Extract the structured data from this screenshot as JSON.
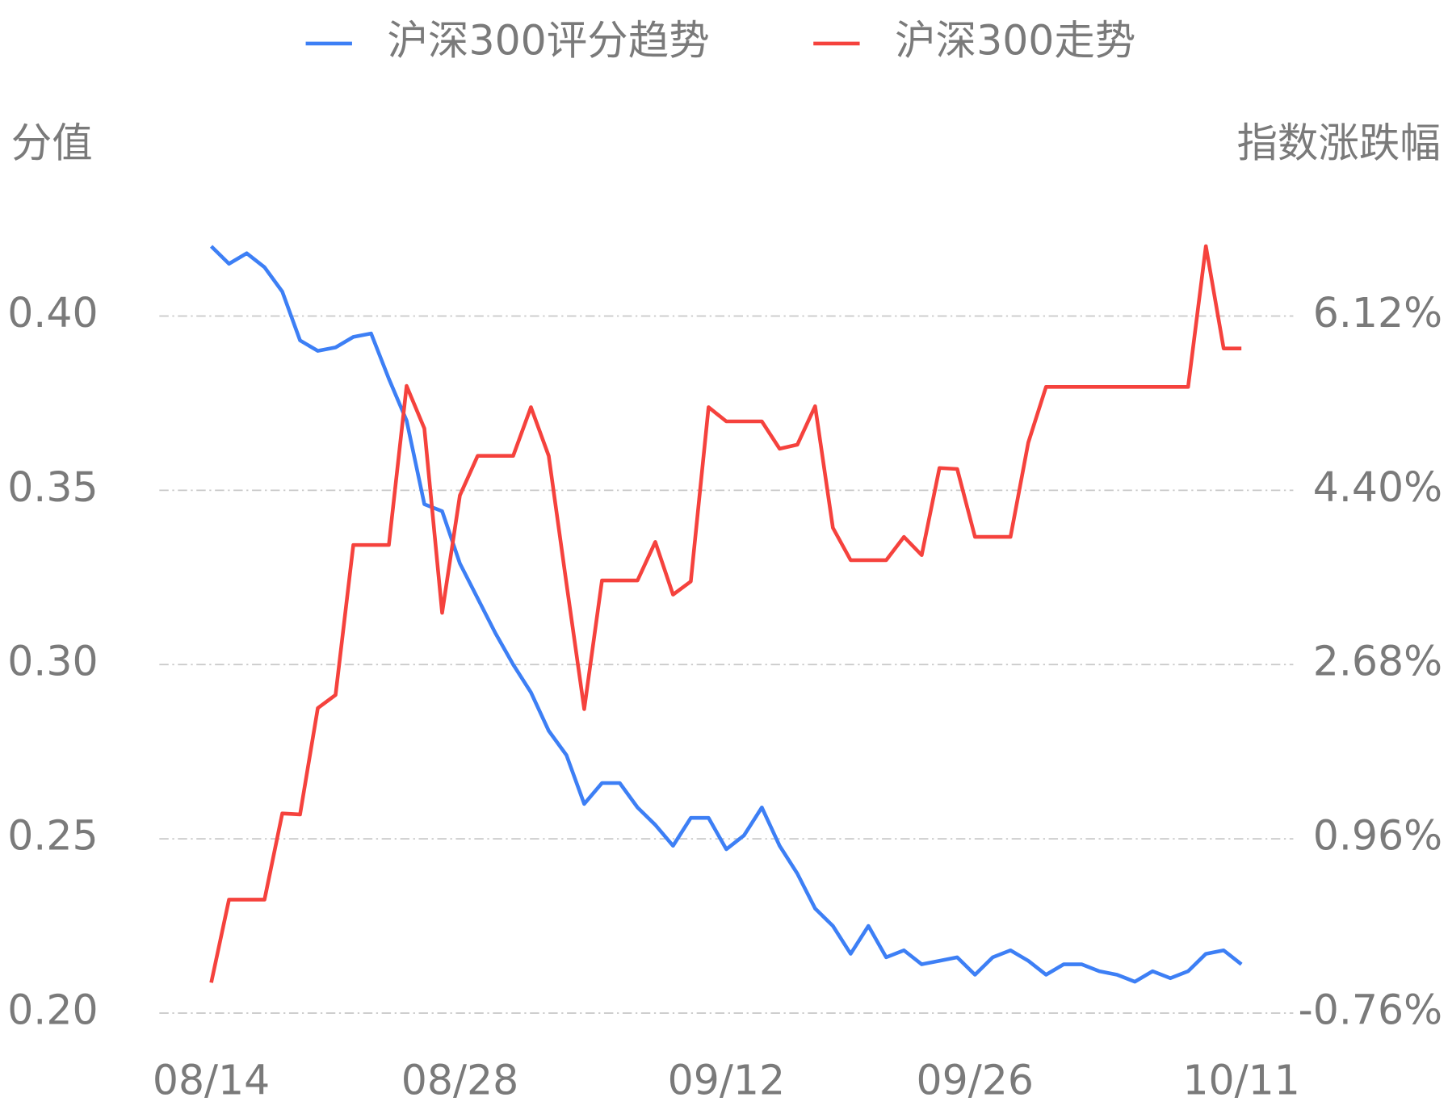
{
  "chart_data": {
    "type": "line",
    "y_label": "分值",
    "y2_label": "指数涨跌幅",
    "categories": [
      "08/14",
      null,
      null,
      null,
      null,
      null,
      null,
      null,
      null,
      null,
      null,
      null,
      null,
      null,
      "08/28",
      null,
      null,
      null,
      null,
      null,
      null,
      null,
      null,
      null,
      null,
      null,
      null,
      null,
      null,
      "09/12",
      null,
      null,
      null,
      null,
      null,
      null,
      null,
      null,
      null,
      null,
      null,
      null,
      null,
      "09/26",
      null,
      null,
      null,
      null,
      null,
      null,
      null,
      null,
      null,
      null,
      null,
      null,
      null,
      null,
      "10/11"
    ],
    "series": [
      {
        "name": "沪深300评分趋势",
        "color": "#3d7ff5",
        "axis": "y",
        "values": [
          0.42,
          0.415,
          0.418,
          0.414,
          0.407,
          0.393,
          0.39,
          0.391,
          0.394,
          0.395,
          0.382,
          0.37,
          0.346,
          0.344,
          0.329,
          0.319,
          0.309,
          0.3,
          0.292,
          0.281,
          0.274,
          0.26,
          0.266,
          0.266,
          0.259,
          0.254,
          0.248,
          0.256,
          0.256,
          0.247,
          0.251,
          0.259,
          0.248,
          0.24,
          0.23,
          0.225,
          0.217,
          0.225,
          0.216,
          0.218,
          0.214,
          0.215,
          0.216,
          0.211,
          0.216,
          0.218,
          0.215,
          0.211,
          0.214,
          0.214,
          0.212,
          0.211,
          0.209,
          0.212,
          0.21,
          0.212,
          0.217,
          0.218,
          0.214
        ]
      },
      {
        "name": "沪深300走势",
        "color": "#f5423d",
        "axis": "y2",
        "values": [
          -0.46,
          0.36,
          0.36,
          0.36,
          1.21,
          1.2,
          2.25,
          2.38,
          3.86,
          3.86,
          3.86,
          5.43,
          5.01,
          3.19,
          4.35,
          4.74,
          4.74,
          4.74,
          5.22,
          4.74,
          3.48,
          2.24,
          3.51,
          3.51,
          3.51,
          3.89,
          3.37,
          3.5,
          5.22,
          5.08,
          5.08,
          5.08,
          4.81,
          4.85,
          5.23,
          4.03,
          3.71,
          3.71,
          3.71,
          3.94,
          3.76,
          4.62,
          4.61,
          3.94,
          3.94,
          3.94,
          4.87,
          5.42,
          5.42,
          5.42,
          5.42,
          5.42,
          5.42,
          5.42,
          5.42,
          5.42,
          6.81,
          5.8,
          5.8
        ]
      }
    ],
    "ylim": [
      0.2,
      0.42
    ],
    "yticks": [
      {
        "value": 0.2,
        "label": "0.20"
      },
      0.25,
      {
        "value": 0.3,
        "label": "0.30"
      },
      0.35,
      {
        "value": 0.4,
        "label": "0.40"
      }
    ],
    "y2lim": [
      -0.76,
      6.808
    ],
    "y2ticks": [
      {
        "value": -0.76,
        "label": "-0.76%"
      },
      {
        "value": 0.96,
        "label": "0.96%"
      },
      {
        "value": 2.68,
        "label": "2.68%"
      },
      {
        "value": 4.4,
        "label": "4.40%"
      },
      {
        "value": 6.12,
        "label": "6.12%"
      }
    ],
    "grid": true,
    "legend": "top"
  }
}
